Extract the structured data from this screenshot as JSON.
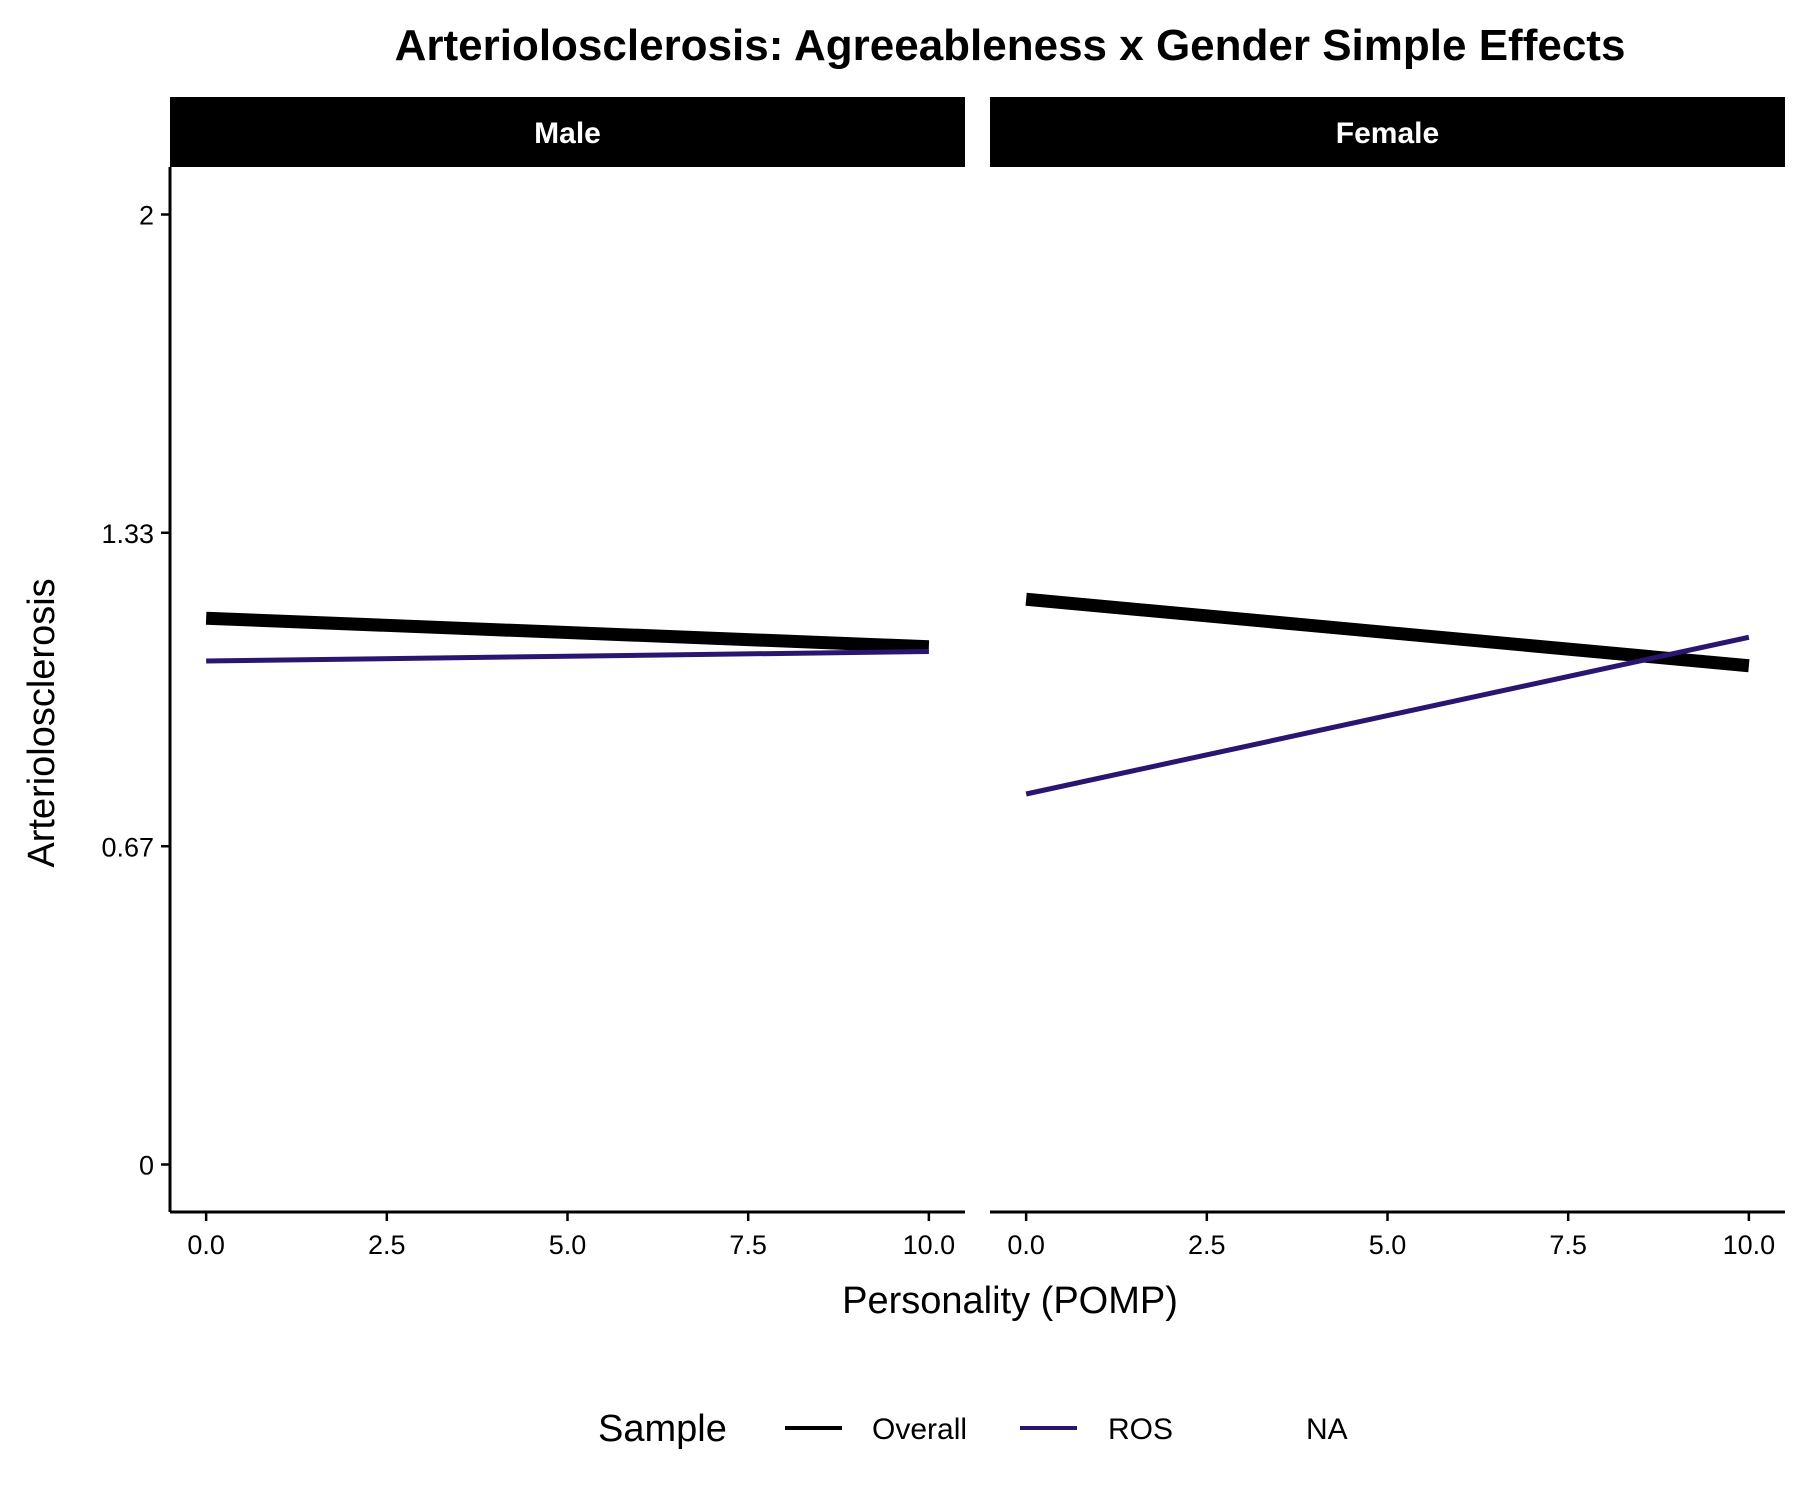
{
  "chart_data": {
    "type": "line",
    "title": "Arteriolosclerosis: Agreeableness x Gender Simple Effects",
    "xlabel": "Personality (POMP)",
    "ylabel": "Arteriolosclerosis",
    "xlim": [
      -0.5,
      10.5
    ],
    "ylim": [
      -0.1,
      2.1
    ],
    "x_ticks": [
      0,
      2.5,
      5,
      7.5,
      10
    ],
    "x_tick_labels": [
      "0.0",
      "2.5",
      "5.0",
      "7.5",
      "10.0"
    ],
    "y_ticks": [
      0,
      0.67,
      1.33,
      2
    ],
    "y_tick_labels": [
      "0",
      "0.67",
      "1.33",
      "2"
    ],
    "grid": false,
    "legend_position": "bottom",
    "legend": {
      "title": "Sample",
      "entries": [
        {
          "label": "Overall",
          "color": "#000000"
        },
        {
          "label": "ROS",
          "color": "#2a1670"
        },
        {
          "label": "NA",
          "color": "none"
        }
      ]
    },
    "panels": [
      {
        "label": "Male",
        "series": [
          {
            "name": "Overall",
            "color": "#000000",
            "x": [
              0,
              10
            ],
            "y": [
              1.15,
              1.09
            ]
          },
          {
            "name": "ROS",
            "color": "#2a1670",
            "x": [
              0,
              10
            ],
            "y": [
              1.06,
              1.08
            ]
          }
        ]
      },
      {
        "label": "Female",
        "series": [
          {
            "name": "Overall",
            "color": "#000000",
            "x": [
              0,
              10
            ],
            "y": [
              1.19,
              1.05
            ]
          },
          {
            "name": "ROS",
            "color": "#2a1670",
            "x": [
              0,
              10
            ],
            "y": [
              0.78,
              1.11
            ]
          }
        ]
      }
    ]
  }
}
